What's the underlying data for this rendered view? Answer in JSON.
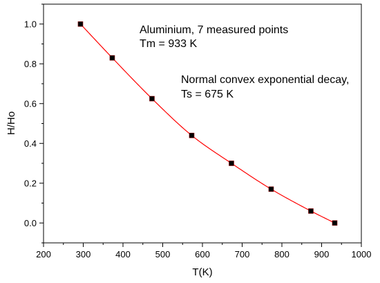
{
  "chart_data": {
    "type": "scatter",
    "title": "",
    "xlabel": "T(K)",
    "ylabel": "H/Ho",
    "xlim": [
      200,
      1000
    ],
    "ylim": [
      -0.1,
      1.1
    ],
    "x_ticks": [
      200,
      300,
      400,
      500,
      600,
      700,
      800,
      900,
      1000
    ],
    "y_ticks": [
      0.0,
      0.2,
      0.4,
      0.6,
      0.8,
      1.0
    ],
    "x_tick_labels": [
      "200",
      "300",
      "400",
      "500",
      "600",
      "700",
      "800",
      "900",
      "1000"
    ],
    "y_tick_labels": [
      "0.0",
      "0.2",
      "0.4",
      "0.6",
      "0.8",
      "1.0"
    ],
    "grid": false,
    "series": [
      {
        "marker": "square",
        "color": "#000000",
        "x": [
          293,
          373,
          473,
          573,
          673,
          773,
          873,
          933
        ],
        "y": [
          1.0,
          0.83,
          0.625,
          0.44,
          0.3,
          0.17,
          0.06,
          0.0
        ]
      }
    ],
    "fit_curve": {
      "color": "#ff0000",
      "x_range": [
        293,
        933
      ],
      "Ts": 675,
      "Tm": 933
    },
    "annotations": [
      {
        "lines": [
          "Aluminium, 7 measured points",
          "Tm = 933 K"
        ]
      },
      {
        "lines": [
          "Normal convex exponential decay,",
          "Ts = 675 K"
        ]
      }
    ]
  }
}
